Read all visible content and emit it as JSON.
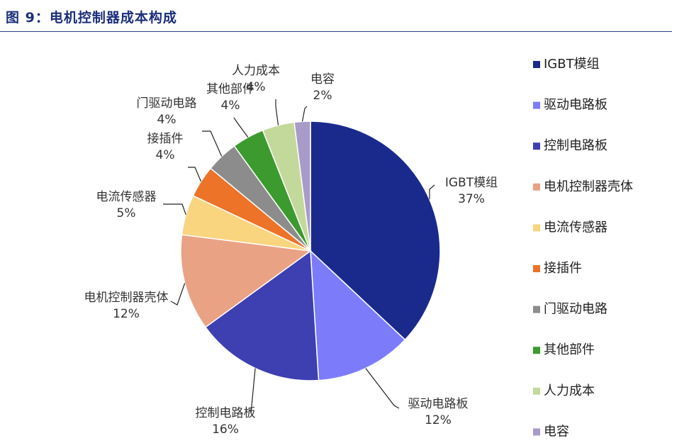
{
  "figure_title": "图 9：电机控制器成本构成",
  "chart_data": {
    "type": "pie",
    "slices": [
      {
        "label": "IGBT模组",
        "value": 37,
        "value_label": "37%",
        "color": "#1a2a8c"
      },
      {
        "label": "驱动电路板",
        "value": 12,
        "value_label": "12%",
        "color": "#7c7cfb"
      },
      {
        "label": "控制电路板",
        "value": 16,
        "value_label": "16%",
        "color": "#3e3fb0"
      },
      {
        "label": "电机控制器壳体",
        "value": 12,
        "value_label": "12%",
        "color": "#eaa285"
      },
      {
        "label": "电流传感器",
        "value": 5,
        "value_label": "5%",
        "color": "#f9d57f"
      },
      {
        "label": "接插件",
        "value": 4,
        "value_label": "4%",
        "color": "#ec7328"
      },
      {
        "label": "门驱动电路",
        "value": 4,
        "value_label": "4%",
        "color": "#8c8c8c"
      },
      {
        "label": "其他部件",
        "value": 4,
        "value_label": "4%",
        "color": "#3c9a2f"
      },
      {
        "label": "人力成本",
        "value": 4,
        "value_label": "4%",
        "color": "#c3d99b"
      },
      {
        "label": "电容",
        "value": 2,
        "value_label": "2%",
        "color": "#a89bc8"
      }
    ],
    "legend_position": "right"
  }
}
